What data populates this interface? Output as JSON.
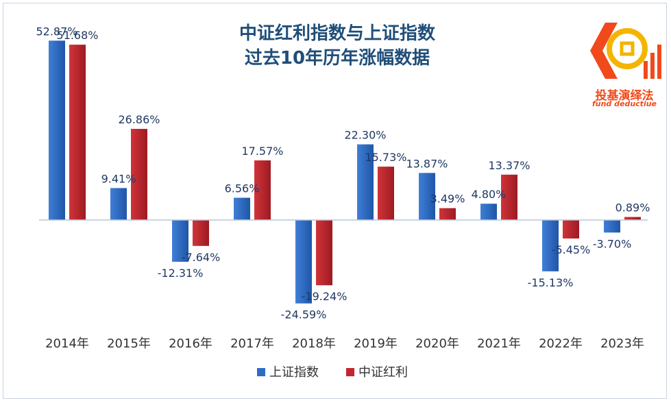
{
  "chart_data": {
    "type": "bar",
    "title_lines": [
      "中证红利指数与上证指数",
      "过去10年历年涨幅数据"
    ],
    "categories": [
      "2014年",
      "2015年",
      "2016年",
      "2017年",
      "2018年",
      "2019年",
      "2020年",
      "2021年",
      "2022年",
      "2023年"
    ],
    "series": [
      {
        "name": "上证指数",
        "color": "#2e6cc7",
        "values": [
          52.87,
          9.41,
          -12.31,
          6.56,
          -24.59,
          22.3,
          13.87,
          4.8,
          -15.13,
          -3.7
        ],
        "labels": [
          "52.87%",
          "9.41%",
          "-12.31%",
          "6.56%",
          "-24.59%",
          "22.30%",
          "13.87%",
          "4.80%",
          "-15.13%",
          "-3.70%"
        ]
      },
      {
        "name": "中证红利",
        "color": "#c1272d",
        "values": [
          51.68,
          26.86,
          -7.64,
          17.57,
          -19.24,
          15.73,
          3.49,
          13.37,
          -5.45,
          0.89
        ],
        "labels": [
          "51.68%",
          "26.86%",
          "-7.64%",
          "17.57%",
          "-19.24%",
          "15.73%",
          "3.49%",
          "13.37%",
          "-5.45%",
          "0.89%"
        ]
      }
    ],
    "legend_position": "bottom-center",
    "grid": false
  },
  "logo": {
    "text_cn": "投基演绎法",
    "text_en": "fund deductiue",
    "color": "#f04a1c"
  }
}
